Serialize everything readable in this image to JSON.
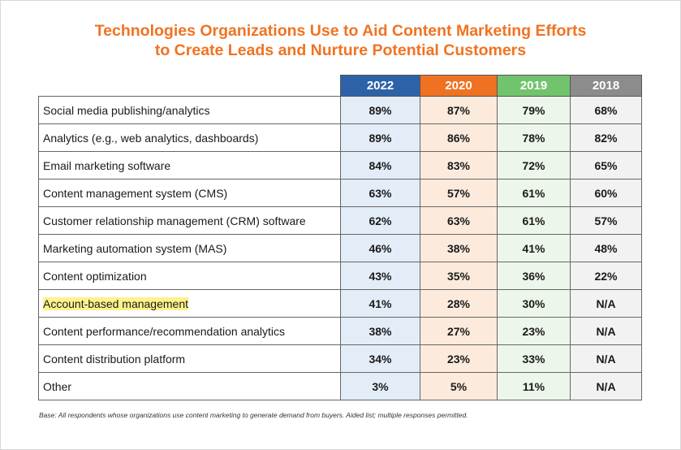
{
  "title_line1": "Technologies Organizations Use to Aid Content Marketing Efforts",
  "title_line2": "to Create Leads and Nurture Potential Customers",
  "footnote": "Base: All respondents whose organizations use content marketing to generate demand from buyers. Aided list; multiple responses permitted.",
  "colors": {
    "title": "#f07321",
    "header": [
      "#2e62a8",
      "#ee7222",
      "#72c36e",
      "#8c8c8c"
    ],
    "cell": [
      "#e3edf8",
      "#fcebdd",
      "#edf6ea",
      "#f2f2f2"
    ],
    "highlight": "#fdf28b"
  },
  "chart_data": {
    "type": "table",
    "columns": [
      "2022",
      "2020",
      "2019",
      "2018"
    ],
    "rows": [
      {
        "label": "Social media publishing/analytics",
        "values": [
          "89%",
          "87%",
          "79%",
          "68%"
        ]
      },
      {
        "label": "Analytics (e.g., web analytics, dashboards)",
        "values": [
          "89%",
          "86%",
          "78%",
          "82%"
        ]
      },
      {
        "label": "Email marketing software",
        "values": [
          "84%",
          "83%",
          "72%",
          "65%"
        ]
      },
      {
        "label": "Content management system (CMS)",
        "values": [
          "63%",
          "57%",
          "61%",
          "60%"
        ]
      },
      {
        "label": "Customer relationship management (CRM) software",
        "values": [
          "62%",
          "63%",
          "61%",
          "57%"
        ]
      },
      {
        "label": "Marketing automation system (MAS)",
        "values": [
          "46%",
          "38%",
          "41%",
          "48%"
        ]
      },
      {
        "label": "Content optimization",
        "values": [
          "43%",
          "35%",
          "36%",
          "22%"
        ]
      },
      {
        "label": "Account-based management",
        "values": [
          "41%",
          "28%",
          "30%",
          "N/A"
        ],
        "highlighted": true
      },
      {
        "label": "Content performance/recommendation analytics",
        "values": [
          "38%",
          "27%",
          "23%",
          "N/A"
        ]
      },
      {
        "label": "Content distribution platform",
        "values": [
          "34%",
          "23%",
          "33%",
          "N/A"
        ]
      },
      {
        "label": "Other",
        "values": [
          "3%",
          "5%",
          "11%",
          "N/A"
        ]
      }
    ]
  }
}
